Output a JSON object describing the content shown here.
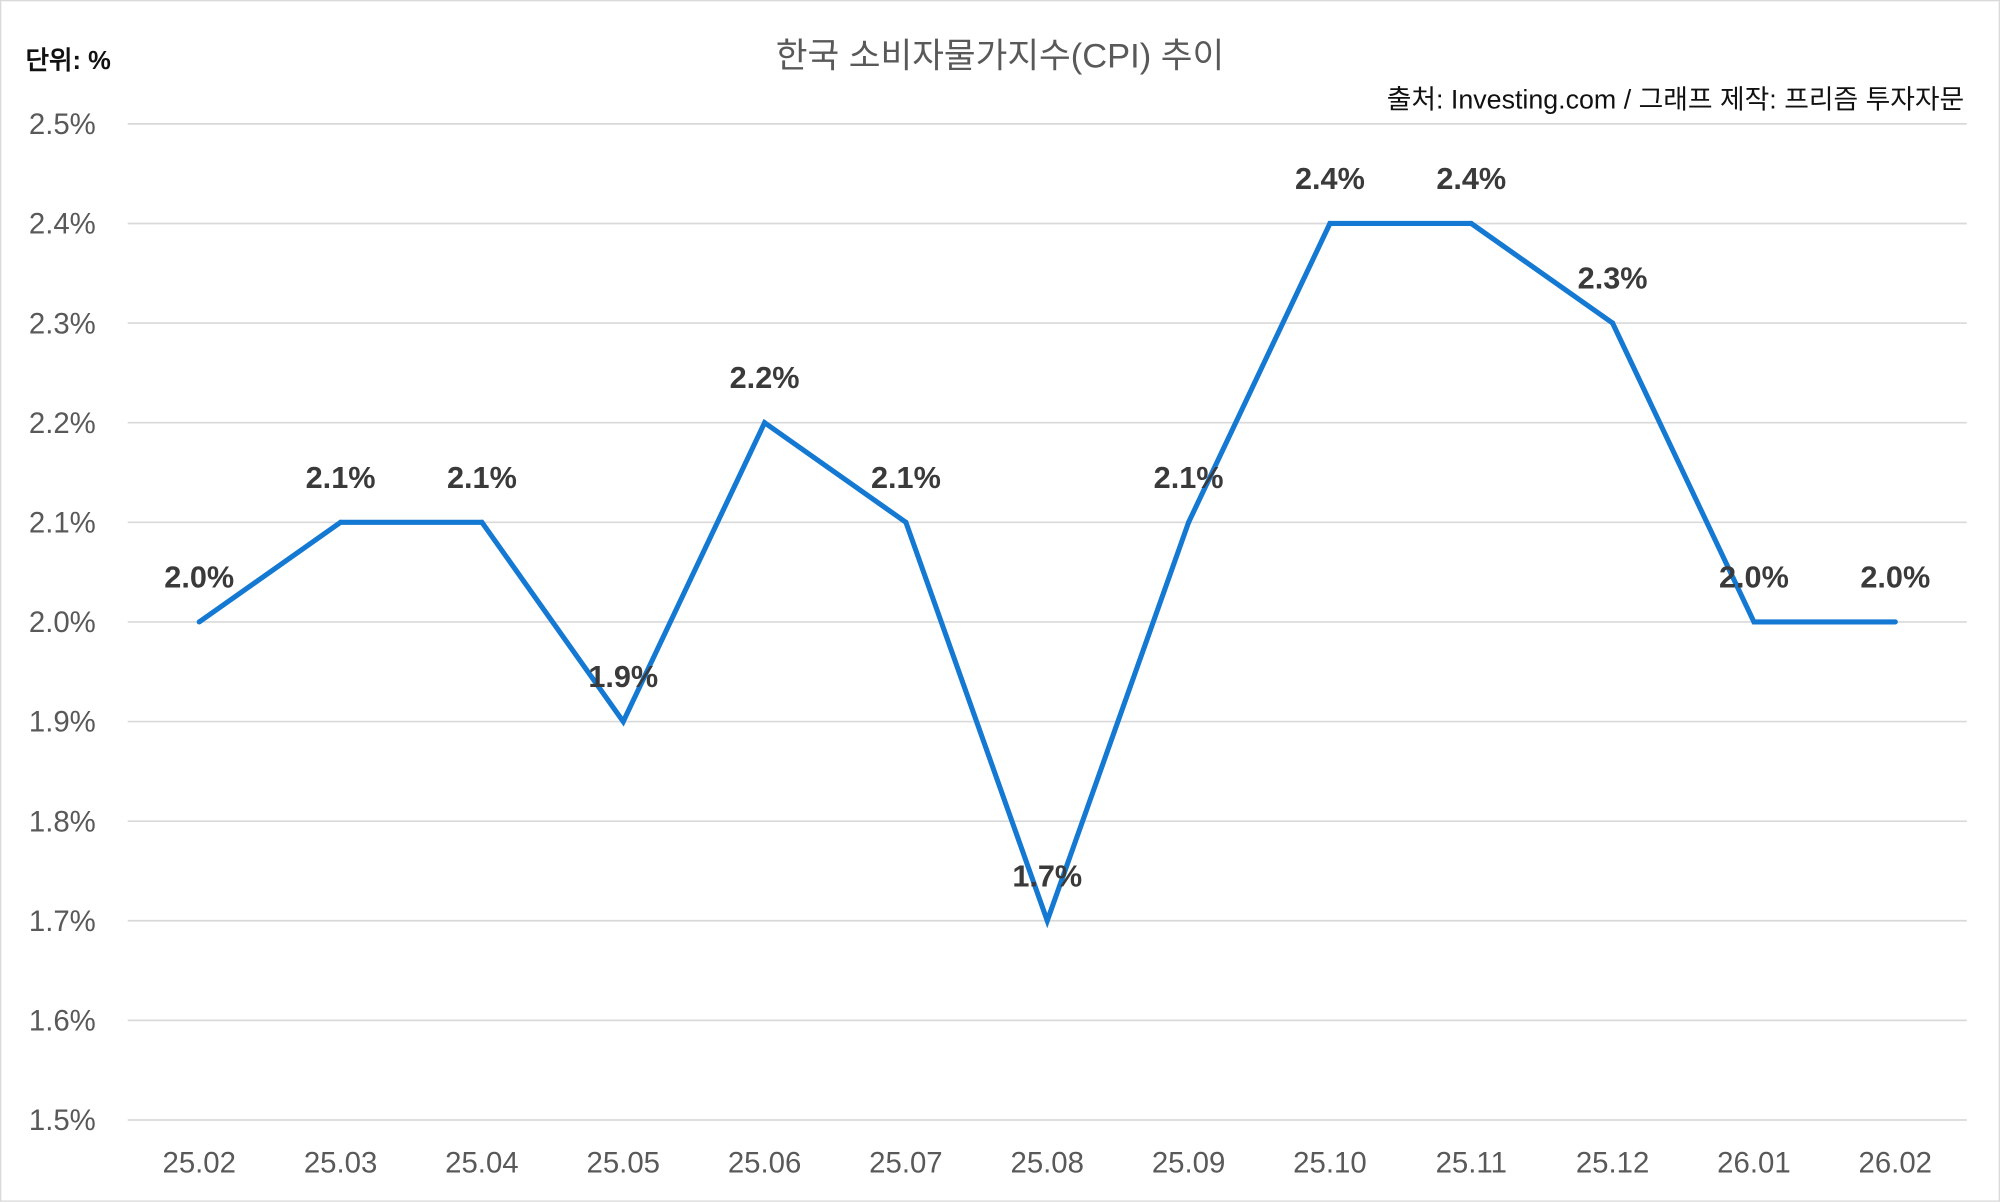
{
  "chart_data": {
    "type": "line",
    "title": "한국 소비자물가지수(CPI) 추이",
    "unit_label": "단위: %",
    "source": "출처: Investing.com / 그래프 제작: 프리즘 투자자문",
    "categories": [
      "25.02",
      "25.03",
      "25.04",
      "25.05",
      "25.06",
      "25.07",
      "25.08",
      "25.09",
      "25.10",
      "25.11",
      "25.12",
      "26.01",
      "26.02"
    ],
    "values": [
      2.0,
      2.1,
      2.1,
      1.9,
      2.2,
      2.1,
      1.7,
      2.1,
      2.4,
      2.4,
      2.3,
      2.0,
      2.0
    ],
    "data_labels": [
      "2.0%",
      "2.1%",
      "2.1%",
      "1.9%",
      "2.2%",
      "2.1%",
      "1.7%",
      "2.1%",
      "2.4%",
      "2.4%",
      "2.3%",
      "2.0%",
      "2.0%"
    ],
    "yticks": [
      "1.5%",
      "1.6%",
      "1.7%",
      "1.8%",
      "1.9%",
      "2.0%",
      "2.1%",
      "2.2%",
      "2.3%",
      "2.4%",
      "2.5%"
    ],
    "ylim": [
      1.5,
      2.5
    ],
    "grid": true,
    "legend": "none",
    "colors": {
      "line": "#1479d2",
      "grid": "#d9d9d9",
      "label": "#3a3a3a",
      "axis_text": "#595959"
    }
  }
}
